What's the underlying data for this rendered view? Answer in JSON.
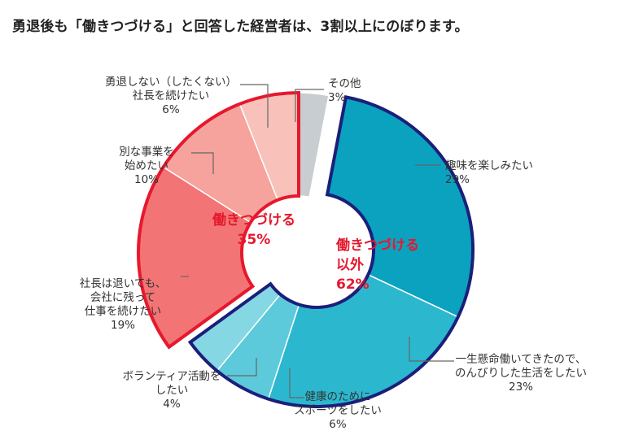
{
  "title": "勇退後も「働きつづける」と回答した経営者は、3割以上にのぼります。",
  "chart_data": {
    "type": "pie",
    "style": "exploded-donut",
    "slices": [
      {
        "group": "work",
        "lines": [
          "その他"
        ],
        "pct": "3%",
        "value": 3,
        "color": "#c8cdd1"
      },
      {
        "group": "nowork",
        "lines": [
          "趣味を楽しみたい"
        ],
        "pct": "29%",
        "value": 29,
        "color": "#0aa2bf"
      },
      {
        "group": "nowork",
        "lines": [
          "一生懸命働いてきたので、",
          "のんびりした生活をしたい"
        ],
        "pct": "23%",
        "value": 23,
        "color": "#2bb8cf"
      },
      {
        "group": "nowork",
        "lines": [
          "健康のために",
          "スポーツをしたい"
        ],
        "pct": "6%",
        "value": 6,
        "color": "#5ccadb"
      },
      {
        "group": "nowork",
        "lines": [
          "ボランティア活動を",
          "したい"
        ],
        "pct": "4%",
        "value": 4,
        "color": "#86d7e4"
      },
      {
        "group": "work",
        "lines": [
          "社長は退いても、",
          "会社に残って",
          "仕事を続けたい"
        ],
        "pct": "19%",
        "value": 19,
        "color": "#f27474"
      },
      {
        "group": "work",
        "lines": [
          "別な事業を",
          "始めたい"
        ],
        "pct": "10%",
        "value": 10,
        "color": "#f5a39c"
      },
      {
        "group": "work",
        "lines": [
          "勇退しない（したくない）",
          "社長を続けたい"
        ],
        "pct": "6%",
        "value": 6,
        "color": "#f8c1ba"
      }
    ],
    "groups": {
      "work": {
        "lines": [
          "働きつづける",
          "35%"
        ],
        "color": "#e6182e",
        "border": "#e6182e"
      },
      "nowork": {
        "lines": [
          "働きつづける",
          "以外",
          "62%"
        ],
        "color": "#e6182e",
        "border": "#1b1f7a"
      }
    }
  }
}
